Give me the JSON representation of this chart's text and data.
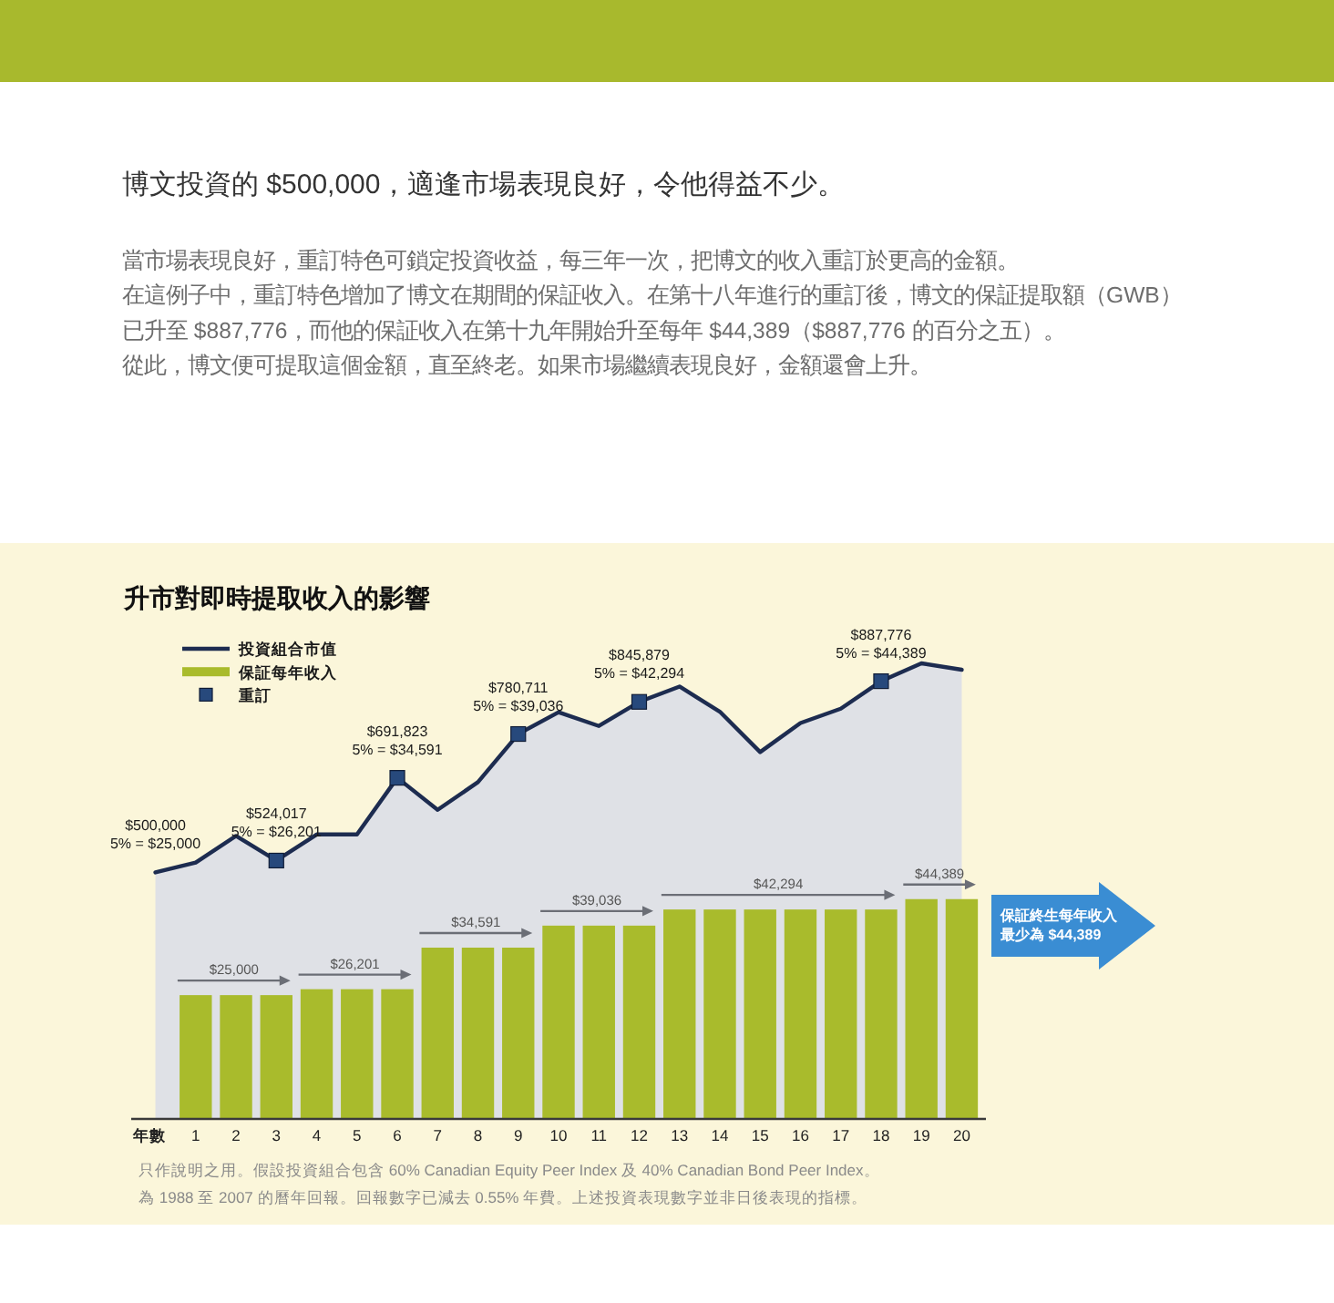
{
  "chart_data": {
    "type": "bar",
    "title": "博文投資的 $500,000，適逢市場表現良好，令他得益不少。",
    "subtitle": "當市場表現良好，重訂特色可鎖定投資收益，每三年一次，把博文的收入重訂於更高的金額。在這例子中，重訂特色增加了博文在期間的保証收入。在第十八年進行的重訂後，博文的保証提取額（GWB）已升至 $887,776，而他的保証收入在第十九年開始升至每年 $44,389（$887,776 的百分之五）。從此，博文便可提取這個金額，直至終老。如果市場繼續表現良好，金額還會上升。",
    "xlabel": "年數",
    "xlim": [
      -0.6,
      20.6
    ],
    "xticks": [
      1,
      2,
      3,
      4,
      5,
      6,
      7,
      8,
      9,
      10,
      11,
      12,
      13,
      14,
      15,
      16,
      17,
      18,
      19,
      20
    ],
    "ylim": [
      0,
      92000
    ],
    "y2lim": [
      0,
      924000
    ],
    "tick_labels": "x",
    "legend": "top left",
    "series": [
      {
        "name": "投資組合市值",
        "type": "area",
        "axis": "y2",
        "color": "#1d2c50",
        "x": [
          0,
          1,
          2,
          3,
          4,
          5,
          6,
          7,
          8,
          9,
          10,
          11,
          12,
          13,
          14,
          15,
          16,
          17,
          18,
          19,
          20
        ],
        "values": [
          500000,
          520000,
          574000,
          524017,
          577000,
          577000,
          691823,
          627000,
          683000,
          780711,
          825000,
          797000,
          845879,
          877000,
          826000,
          744000,
          803000,
          832000,
          887776,
          924000,
          911000
        ],
        "value_labels": [
          "$500,000\n5% = $25,000",
          null,
          null,
          null,
          null,
          null,
          null,
          null,
          null,
          null,
          null,
          null,
          null,
          null,
          null,
          null,
          null,
          null,
          null,
          null,
          null
        ]
      },
      {
        "name": "保証每年收入",
        "color": "#a9bb2c",
        "x": [
          1,
          2,
          3,
          4,
          5,
          6,
          7,
          8,
          9,
          10,
          11,
          12,
          13,
          14,
          15,
          16,
          17,
          18,
          19,
          20
        ],
        "values": [
          25000,
          25000,
          25000,
          26201,
          26201,
          26201,
          34591,
          34591,
          34591,
          39036,
          39036,
          39036,
          42294,
          42294,
          42294,
          42294,
          42294,
          42294,
          44389,
          44389
        ],
        "value_labels": [
          null,
          "$25,000",
          null,
          null,
          "$26,201",
          null,
          null,
          "$34,591",
          null,
          null,
          "$39,036",
          null,
          null,
          null,
          "$42,294",
          null,
          null,
          null,
          "$44,389",
          null
        ]
      },
      {
        "name": "重訂",
        "type": "scatter",
        "axis": "y2",
        "marker": "square",
        "color": "#27497c",
        "x": [
          3,
          6,
          9,
          12,
          18
        ],
        "values": [
          524017,
          691823,
          780711,
          845879,
          887776
        ],
        "value_labels": [
          "$524,017\n5% = $26,201",
          "$691,823\n5% = $34,591",
          "$780,711\n5% = $39,036",
          "$845,879\n5% = $42,294",
          "$887,776\n5% = $44,389"
        ]
      }
    ],
    "annotations": [
      "升市對即時提取收入的影響",
      "保証終生每年收入最少為 $44,389",
      "只作說明之用。假設投資組合包含 60% Canadian Equity Peer Index 及 40% Canadian Bond Peer Index。為 1988 至 2007 的曆年回報。回報數字已減去 0.55% 年費。上述投資表現數字並非日後表現的指標。"
    ]
  }
}
